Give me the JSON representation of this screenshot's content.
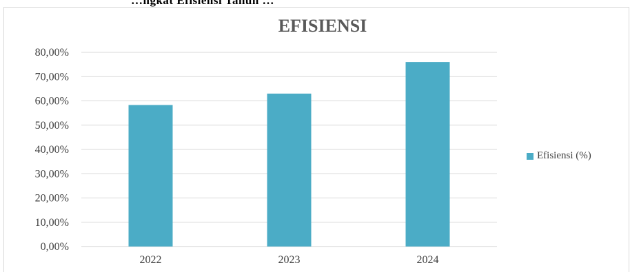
{
  "header_fragment": "…ngkat Efisiensi Tahun …",
  "chart_data": {
    "type": "bar",
    "title": "EFISIENSI",
    "categories": [
      "2022",
      "2023",
      "2024"
    ],
    "series": [
      {
        "name": "Efisiensi (%)",
        "values": [
          58.3,
          63.0,
          76.0
        ]
      }
    ],
    "ylim": [
      0,
      80
    ],
    "yticks": [
      0,
      10,
      20,
      30,
      40,
      50,
      60,
      70,
      80
    ],
    "ytick_labels": [
      "0,00%",
      "10,00%",
      "20,00%",
      "30,00%",
      "40,00%",
      "50,00%",
      "60,00%",
      "70,00%",
      "80,00%"
    ],
    "xlabel": "",
    "ylabel": "",
    "grid": true,
    "legend_position": "right",
    "bar_color": "#4bacc6",
    "grid_color": "#d9d9d9"
  }
}
